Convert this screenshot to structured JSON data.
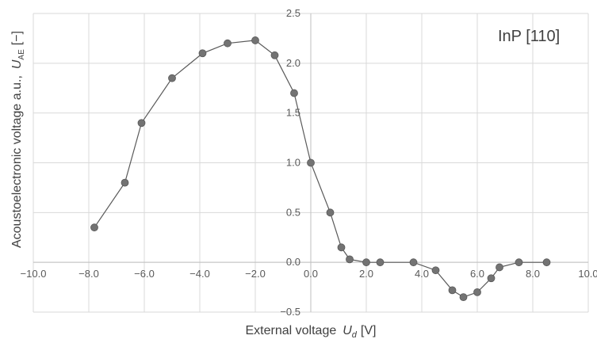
{
  "chart_data": {
    "type": "scatter",
    "annotation": "InP [110]",
    "xlabel_main": "External voltage",
    "xlabel_sym": "U",
    "xlabel_sub": "d",
    "xlabel_unit": "[V]",
    "ylabel_main": "Acoustoelectronic voltage a.u.,",
    "ylabel_sym": "U",
    "ylabel_sub": "AE",
    "ylabel_unit": "[−]",
    "xlim": [
      -10,
      10
    ],
    "ylim": [
      -0.5,
      2.5
    ],
    "x_ticks": [
      -10,
      -8,
      -6,
      -4,
      -2,
      0,
      2,
      4,
      6,
      8,
      10
    ],
    "x_tick_labels": [
      "−10.0",
      "−8.0",
      "−6.0",
      "−4.0",
      "−2.0",
      "0.0",
      "2.0",
      "4.0",
      "6.0",
      "8.0",
      "10.0"
    ],
    "y_ticks": [
      -0.5,
      0,
      0.5,
      1,
      1.5,
      2,
      2.5
    ],
    "y_tick_labels": [
      "−0.5",
      "0.0",
      "0.5",
      "1.0",
      "1.5",
      "2.0",
      "2.5"
    ],
    "grid": true,
    "series": [
      {
        "x": [
          -7.8,
          -6.7,
          -6.1,
          -5.0,
          -3.9,
          -3.0,
          -2.0,
          -1.3,
          -0.6,
          0.0,
          0.7,
          1.1,
          1.4,
          2.0,
          2.5,
          3.7,
          4.5,
          5.1,
          5.5,
          6.0,
          6.5,
          6.8,
          7.5,
          8.5
        ],
        "y": [
          0.35,
          0.8,
          1.4,
          1.85,
          2.1,
          2.2,
          2.23,
          2.08,
          1.7,
          1.0,
          0.5,
          0.15,
          0.03,
          0.0,
          0.0,
          0.0,
          -0.08,
          -0.28,
          -0.35,
          -0.3,
          -0.16,
          -0.05,
          0.0,
          0.0
        ]
      }
    ]
  }
}
